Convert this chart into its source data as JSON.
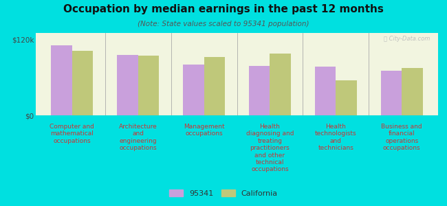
{
  "title": "Occupation by median earnings in the past 12 months",
  "subtitle": "(Note: State values scaled to 95341 population)",
  "background_color": "#00e0e0",
  "plot_bg_color": "#f2f5e0",
  "categories": [
    "Computer and\nmathematical\noccupations",
    "Architecture\nand\nengineering\noccupations",
    "Management\noccupations",
    "Health\ndiagnosing and\ntreating\npractitioners\nand other\ntechnical\noccupations",
    "Health\ntechnologists\nand\ntechnicians",
    "Business and\nfinancial\noperations\noccupations"
  ],
  "values_95341": [
    110000,
    95000,
    80000,
    78000,
    77000,
    70000
  ],
  "values_california": [
    102000,
    94000,
    92000,
    97000,
    55000,
    75000
  ],
  "color_95341": "#c9a0dc",
  "color_california": "#bfc87a",
  "ylim": [
    0,
    130000
  ],
  "yticks": [
    0,
    120000
  ],
  "ytick_labels": [
    "$0",
    "$120k"
  ],
  "legend_95341": "95341",
  "legend_california": "California",
  "bar_width": 0.32,
  "watermark": "Ⓡ City-Data.com"
}
